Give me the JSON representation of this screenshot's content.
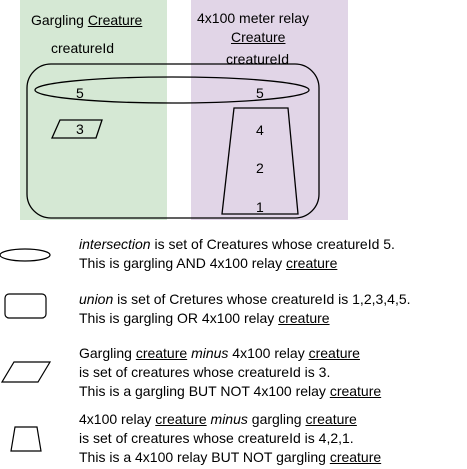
{
  "sets": {
    "gargling": {
      "title_prefix": "Gargling ",
      "title_entity": "Creature",
      "attribute": "creatureId",
      "fill": "#d5e8d4"
    },
    "relay": {
      "title_prefix": "4x100 meter relay",
      "title_entity": "Creature",
      "attribute": "creatureId",
      "fill": "#e1d5e7"
    }
  },
  "values": {
    "intersection_left": "5",
    "intersection_right": "5",
    "gargling_only": "3",
    "relay_only": [
      "4",
      "2",
      "1"
    ]
  },
  "legend": [
    {
      "shape": "ellipse-icon",
      "lines": [
        [
          {
            "text": "intersection",
            "style": "italic"
          },
          {
            "text": " is set of Creatures whose creatureId 5."
          }
        ],
        [
          {
            "text": "This is gargling AND 4x100 relay "
          },
          {
            "text": "creature",
            "style": "underline"
          }
        ]
      ]
    },
    {
      "shape": "rounded-rectangle-icon",
      "lines": [
        [
          {
            "text": "union",
            "style": "italic"
          },
          {
            "text": " is set of Cretures whose creatureId is 1,2,3,4,5."
          }
        ],
        [
          {
            "text": "This is gargling OR 4x100 relay "
          },
          {
            "text": "creature",
            "style": "underline"
          }
        ]
      ]
    },
    {
      "shape": "parallelogram-icon",
      "lines": [
        [
          {
            "text": "Gargling "
          },
          {
            "text": "creature",
            "style": "underline"
          },
          {
            "text": " "
          },
          {
            "text": "minus",
            "style": "italic"
          },
          {
            "text": " 4x100 relay "
          },
          {
            "text": "creature",
            "style": "underline"
          }
        ],
        [
          {
            "text": "is set of creatures whose creatureId is 3."
          }
        ],
        [
          {
            "text": "This is a gargling BUT NOT 4x100 relay "
          },
          {
            "text": "creature",
            "style": "underline"
          }
        ]
      ]
    },
    {
      "shape": "trapezoid-icon",
      "lines": [
        [
          {
            "text": "4x100 relay "
          },
          {
            "text": "creature",
            "style": "underline"
          },
          {
            "text": " "
          },
          {
            "text": "minus",
            "style": "italic"
          },
          {
            "text": " gargling "
          },
          {
            "text": "creature",
            "style": "underline"
          }
        ],
        [
          {
            "text": "is set of creatures whose creatureId is 4,2,1."
          }
        ],
        [
          {
            "text": "This is a 4x100 relay BUT NOT gargling "
          },
          {
            "text": "creature",
            "style": "underline"
          }
        ]
      ]
    }
  ]
}
